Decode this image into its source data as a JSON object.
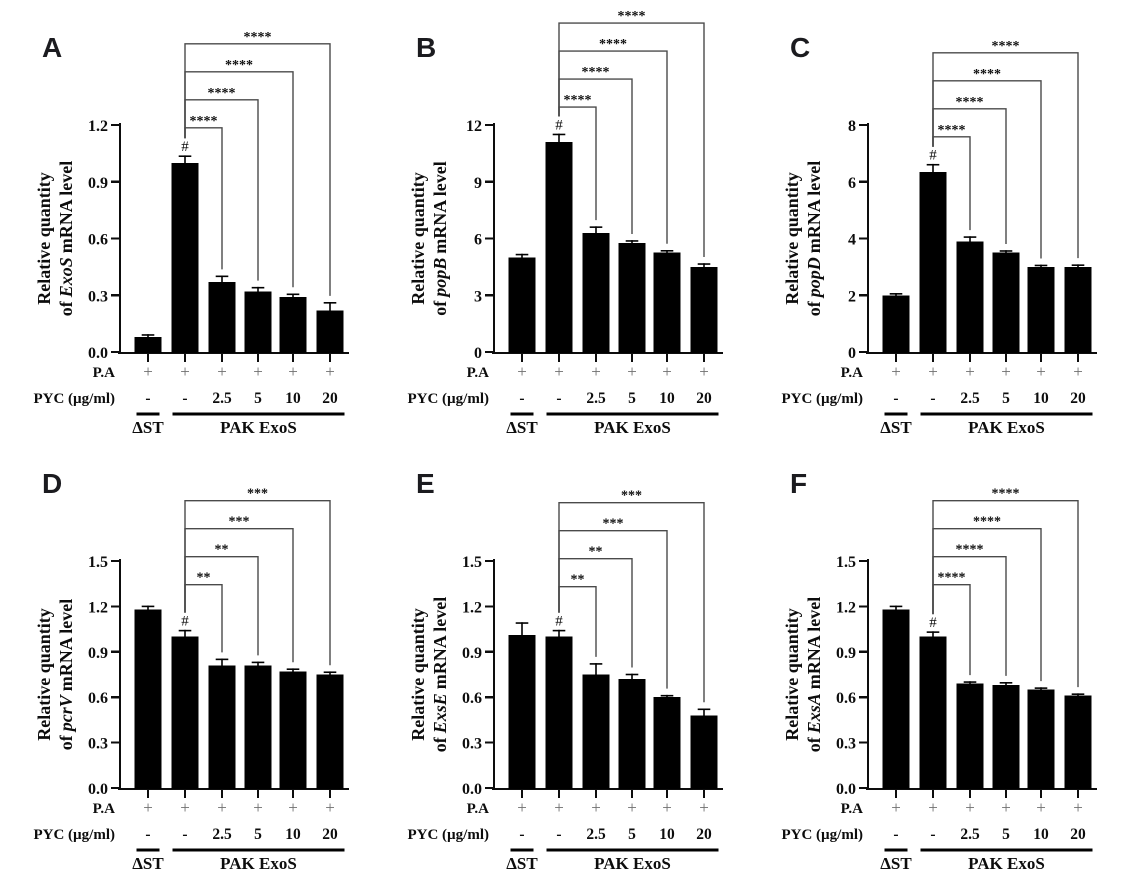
{
  "chart_data": [
    {
      "type": "bar",
      "panel": "A",
      "ylabel_line1": "Relative quantity",
      "ylabel_of": "of",
      "gene": "ExoS",
      "ylabel_tail": "mRNA level",
      "ylim": [
        0,
        1.2
      ],
      "ytick_labels": [
        "0.0",
        "0.3",
        "0.6",
        "0.9",
        "1.2"
      ],
      "values": [
        0.08,
        1.0,
        0.37,
        0.32,
        0.29,
        0.22
      ],
      "errors": [
        0.01,
        0.035,
        0.03,
        0.02,
        0.015,
        0.04
      ],
      "hash_symbol": "#",
      "hash_bar": 2,
      "bracket_offset": 35,
      "significance_brackets": [
        {
          "from_bar": 2,
          "to_bar": 3,
          "label": "****"
        },
        {
          "from_bar": 2,
          "to_bar": 4,
          "label": "****"
        },
        {
          "from_bar": 2,
          "to_bar": 5,
          "label": "****"
        },
        {
          "from_bar": 2,
          "to_bar": 6,
          "label": "****"
        }
      ]
    },
    {
      "type": "bar",
      "panel": "B",
      "ylabel_line1": "Relative quantity",
      "ylabel_of": "of",
      "gene": "popB",
      "ylabel_tail": "mRNA level",
      "ylim": [
        0,
        12
      ],
      "ytick_labels": [
        "0",
        "3",
        "6",
        "9",
        "12"
      ],
      "values": [
        5.0,
        11.1,
        6.3,
        5.75,
        5.25,
        4.5
      ],
      "errors": [
        0.15,
        0.4,
        0.3,
        0.12,
        0.1,
        0.15
      ],
      "hash_symbol": "#",
      "hash_bar": 2,
      "bracket_offset": 35,
      "significance_brackets": [
        {
          "from_bar": 2,
          "to_bar": 3,
          "label": "****"
        },
        {
          "from_bar": 2,
          "to_bar": 4,
          "label": "****"
        },
        {
          "from_bar": 2,
          "to_bar": 5,
          "label": "****"
        },
        {
          "from_bar": 2,
          "to_bar": 6,
          "label": "****"
        }
      ]
    },
    {
      "type": "bar",
      "panel": "C",
      "ylabel_line1": "Relative quantity",
      "ylabel_of": "of",
      "gene": "popD",
      "ylabel_tail": "mRNA level",
      "ylim": [
        0,
        8
      ],
      "ytick_labels": [
        "0",
        "2",
        "4",
        "6",
        "8"
      ],
      "values": [
        2.0,
        6.35,
        3.9,
        3.5,
        3.0,
        3.0
      ],
      "errors": [
        0.05,
        0.25,
        0.15,
        0.06,
        0.05,
        0.06
      ],
      "hash_symbol": "#",
      "hash_bar": 2,
      "bracket_offset": 35,
      "significance_brackets": [
        {
          "from_bar": 2,
          "to_bar": 3,
          "label": "****"
        },
        {
          "from_bar": 2,
          "to_bar": 4,
          "label": "****"
        },
        {
          "from_bar": 2,
          "to_bar": 5,
          "label": "****"
        },
        {
          "from_bar": 2,
          "to_bar": 6,
          "label": "****"
        }
      ]
    },
    {
      "type": "bar",
      "panel": "D",
      "ylabel_line1": "Relative quantity",
      "ylabel_of": "of",
      "gene": "pcrV",
      "ylabel_tail": "mRNA level",
      "ylim": [
        0,
        1.5
      ],
      "ytick_labels": [
        "0.0",
        "0.3",
        "0.6",
        "0.9",
        "1.2",
        "1.5"
      ],
      "values": [
        1.18,
        1.0,
        0.81,
        0.81,
        0.77,
        0.75
      ],
      "errors": [
        0.02,
        0.04,
        0.04,
        0.02,
        0.015,
        0.015
      ],
      "hash_symbol": "#",
      "hash_bar": 2,
      "bracket_offset": 52,
      "significance_brackets": [
        {
          "from_bar": 2,
          "to_bar": 3,
          "label": "**"
        },
        {
          "from_bar": 2,
          "to_bar": 4,
          "label": "**"
        },
        {
          "from_bar": 2,
          "to_bar": 5,
          "label": "***"
        },
        {
          "from_bar": 2,
          "to_bar": 6,
          "label": "***"
        }
      ]
    },
    {
      "type": "bar",
      "panel": "E",
      "ylabel_line1": "Relative quantity",
      "ylabel_of": "of",
      "gene": "ExsE",
      "ylabel_tail": "mRNA level",
      "ylim": [
        0,
        1.5
      ],
      "ytick_labels": [
        "0.0",
        "0.3",
        "0.6",
        "0.9",
        "1.2",
        "1.5"
      ],
      "values": [
        1.01,
        1.0,
        0.75,
        0.72,
        0.6,
        0.48
      ],
      "errors": [
        0.08,
        0.04,
        0.07,
        0.03,
        0.01,
        0.04
      ],
      "hash_symbol": "#",
      "hash_bar": 2,
      "bracket_offset": 50,
      "significance_brackets": [
        {
          "from_bar": 2,
          "to_bar": 3,
          "label": "**"
        },
        {
          "from_bar": 2,
          "to_bar": 4,
          "label": "**"
        },
        {
          "from_bar": 2,
          "to_bar": 5,
          "label": "***"
        },
        {
          "from_bar": 2,
          "to_bar": 6,
          "label": "***"
        }
      ]
    },
    {
      "type": "bar",
      "panel": "F",
      "ylabel_line1": "Relative quantity",
      "ylabel_of": "of",
      "gene": "ExsA",
      "ylabel_tail": "mRNA level",
      "ylim": [
        0,
        1.5
      ],
      "ytick_labels": [
        "0.0",
        "0.3",
        "0.6",
        "0.9",
        "1.2",
        "1.5"
      ],
      "values": [
        1.18,
        1.0,
        0.69,
        0.68,
        0.65,
        0.61
      ],
      "errors": [
        0.02,
        0.03,
        0.01,
        0.015,
        0.01,
        0.01
      ],
      "hash_symbol": "#",
      "hash_bar": 2,
      "bracket_offset": 52,
      "significance_brackets": [
        {
          "from_bar": 2,
          "to_bar": 3,
          "label": "****"
        },
        {
          "from_bar": 2,
          "to_bar": 4,
          "label": "****"
        },
        {
          "from_bar": 2,
          "to_bar": 5,
          "label": "****"
        },
        {
          "from_bar": 2,
          "to_bar": 6,
          "label": "****"
        }
      ]
    }
  ],
  "x_annotations": {
    "pa_label": "P.A",
    "pa_values": [
      "+",
      "+",
      "+",
      "+",
      "+",
      "+"
    ],
    "pyc_label": "PYC (µg/ml)",
    "pyc_values": [
      "-",
      "-",
      "2.5",
      "5",
      "10",
      "20"
    ],
    "groups": [
      {
        "label": "ΔST",
        "from_bar": 1,
        "to_bar": 1
      },
      {
        "label": "PAK ExoS",
        "from_bar": 2,
        "to_bar": 6
      }
    ]
  },
  "style": {
    "bar_color": "#000000",
    "axis_color": "#0d0d0d",
    "text_color": "#0d0d0d",
    "plus_color": "#6f6f6f",
    "bracket_color": "#4a4a4a",
    "panel_letter_color": "#1b1b1f"
  }
}
